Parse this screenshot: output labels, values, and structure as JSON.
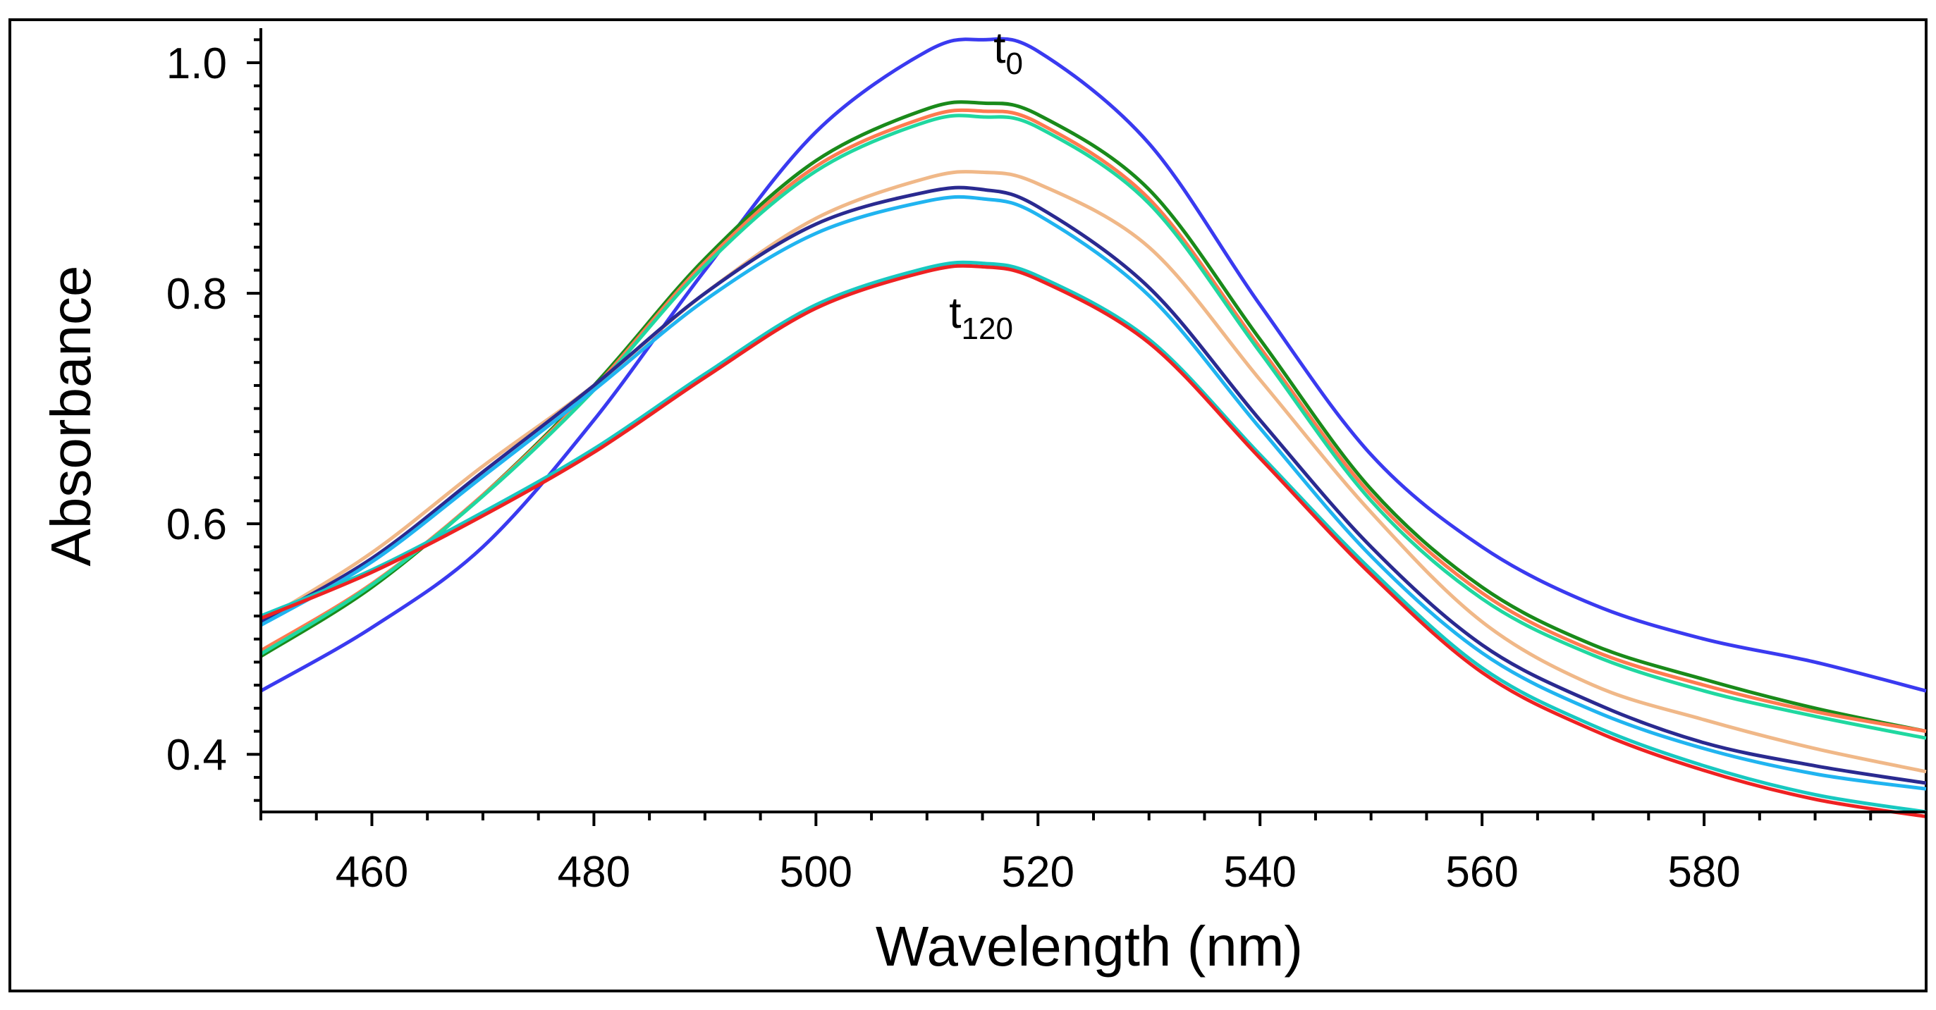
{
  "chart_data": {
    "type": "line",
    "title": "",
    "xlabel": "Wavelength (nm)",
    "ylabel": "Absorbance",
    "xlim": [
      450,
      600
    ],
    "ylim": [
      0.35,
      1.03
    ],
    "x_ticks": [
      460,
      480,
      500,
      520,
      540,
      560,
      580
    ],
    "y_ticks": [
      0.4,
      0.6,
      0.8,
      1.0
    ],
    "x_tick_labels": [
      "460",
      "480",
      "500",
      "520",
      "540",
      "560",
      "580"
    ],
    "y_tick_labels": [
      "0.4",
      "0.6",
      "0.8",
      "1.0"
    ],
    "grid": false,
    "legend": "none",
    "annotations": [
      {
        "base": "t",
        "sub": "0",
        "x": 516,
        "y": 1.0
      },
      {
        "base": "t",
        "sub": "120",
        "x": 512,
        "y": 0.77
      }
    ],
    "x": [
      450,
      460,
      470,
      480,
      490,
      500,
      510,
      515,
      520,
      530,
      540,
      550,
      560,
      570,
      580,
      590,
      600
    ],
    "series": [
      {
        "color": "#3a3af0",
        "values": [
          0.455,
          0.51,
          0.58,
          0.69,
          0.82,
          0.94,
          1.01,
          1.02,
          1.01,
          0.93,
          0.79,
          0.66,
          0.58,
          0.53,
          0.5,
          0.48,
          0.455
        ]
      },
      {
        "color": "#1a8a1a",
        "values": [
          0.485,
          0.545,
          0.625,
          0.72,
          0.83,
          0.915,
          0.96,
          0.965,
          0.955,
          0.89,
          0.76,
          0.63,
          0.545,
          0.495,
          0.465,
          0.44,
          0.42
        ]
      },
      {
        "color": "#ff7a50",
        "values": [
          0.49,
          0.548,
          0.625,
          0.718,
          0.827,
          0.91,
          0.953,
          0.958,
          0.948,
          0.882,
          0.753,
          0.625,
          0.54,
          0.49,
          0.46,
          0.437,
          0.42
        ]
      },
      {
        "color": "#20d8a0",
        "values": [
          0.487,
          0.547,
          0.624,
          0.716,
          0.824,
          0.906,
          0.949,
          0.953,
          0.944,
          0.878,
          0.749,
          0.62,
          0.535,
          0.486,
          0.455,
          0.433,
          0.414
        ]
      },
      {
        "color": "#f0b888",
        "values": [
          0.515,
          0.575,
          0.65,
          0.72,
          0.8,
          0.865,
          0.9,
          0.905,
          0.895,
          0.84,
          0.725,
          0.61,
          0.515,
          0.46,
          0.43,
          0.405,
          0.385
        ]
      },
      {
        "color": "#2a2a90",
        "values": [
          0.515,
          0.57,
          0.645,
          0.72,
          0.8,
          0.86,
          0.888,
          0.89,
          0.875,
          0.805,
          0.69,
          0.58,
          0.495,
          0.445,
          0.41,
          0.39,
          0.375
        ]
      },
      {
        "color": "#20b4f0",
        "values": [
          0.512,
          0.567,
          0.641,
          0.716,
          0.794,
          0.852,
          0.88,
          0.882,
          0.868,
          0.798,
          0.683,
          0.572,
          0.488,
          0.438,
          0.405,
          0.383,
          0.37
        ]
      },
      {
        "color": "#18c8c0",
        "values": [
          0.52,
          0.56,
          0.61,
          0.665,
          0.73,
          0.79,
          0.822,
          0.826,
          0.815,
          0.76,
          0.66,
          0.56,
          0.475,
          0.425,
          0.39,
          0.365,
          0.35
        ]
      },
      {
        "color": "#ee2222",
        "values": [
          0.518,
          0.558,
          0.607,
          0.662,
          0.727,
          0.787,
          0.819,
          0.823,
          0.812,
          0.757,
          0.657,
          0.556,
          0.471,
          0.421,
          0.386,
          0.361,
          0.346
        ]
      }
    ]
  }
}
